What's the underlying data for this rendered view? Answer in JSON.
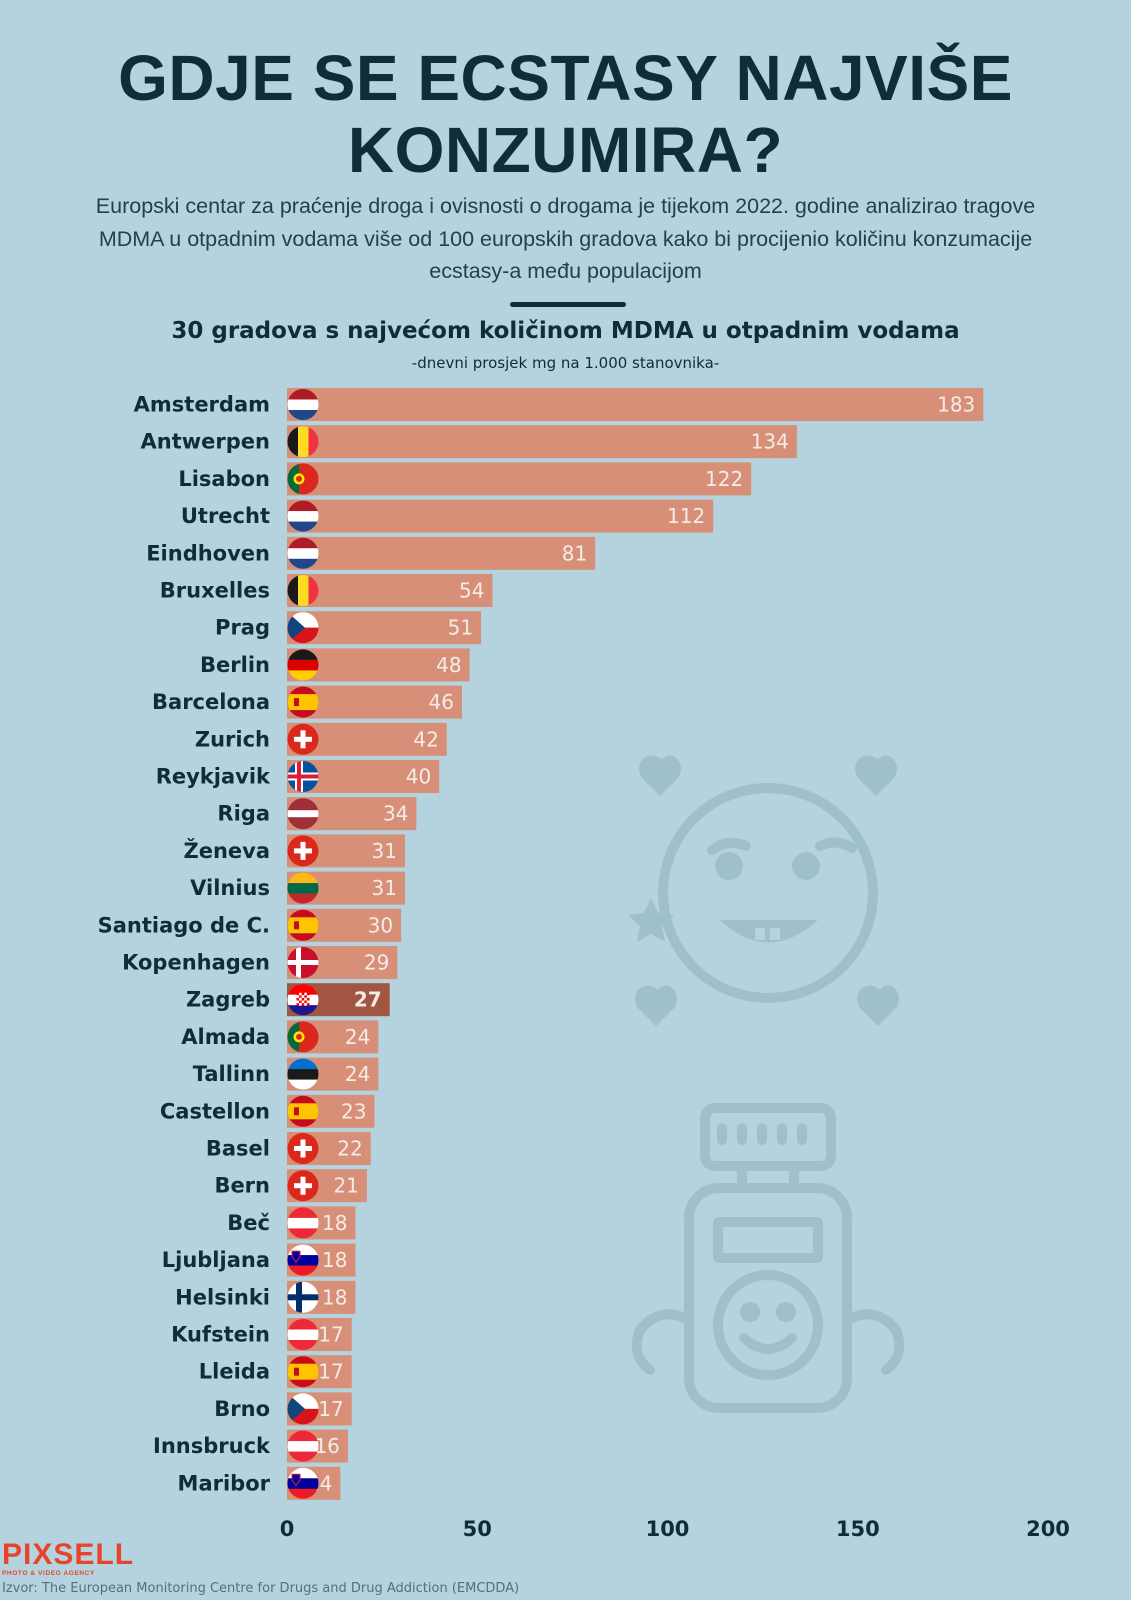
{
  "title": {
    "line1": "GDJE SE ECSTASY NAJVIŠE",
    "line2": "KONZUMIRA?"
  },
  "subtitle": "Europski centar za praćenje droga i ovisnosti o drogama je tijekom 2022. godine analizirao tragove MDMA u otpadnim vodama više od 100 europskih gradova kako bi procijenio količinu konzumacije ecstasy-a među populacijom",
  "colors": {
    "bar": "#d78f78",
    "highlight_bar": "#a25540",
    "value_label": "#f4ece8",
    "category_label": "#0f2d38",
    "axis_label": "#0f2d38",
    "background": "#b4d3de",
    "decoration": "#9fbfcb"
  },
  "chart_data": {
    "type": "bar",
    "orientation": "horizontal",
    "title": "30 gradova s najvećom količinom MDMA u otpadnim vodama",
    "subtitle": "-dnevni prosjek mg na 1.000 stanovnika-",
    "xlim": [
      0,
      200
    ],
    "xticks": [
      0,
      50,
      100,
      150,
      200
    ],
    "highlight": "Zagreb",
    "categories": [
      "Amsterdam",
      "Antwerpen",
      "Lisabon",
      "Utrecht",
      "Eindhoven",
      "Bruxelles",
      "Prag",
      "Berlin",
      "Barcelona",
      "Zurich",
      "Reykjavik",
      "Riga",
      "Ženeva",
      "Vilnius",
      "Santiago de C.",
      "Kopenhagen",
      "Zagreb",
      "Almada",
      "Tallinn",
      "Castellon",
      "Basel",
      "Bern",
      "Beč",
      "Ljubljana",
      "Helsinki",
      "Kufstein",
      "Lleida",
      "Brno",
      "Innsbruck",
      "Maribor"
    ],
    "values": [
      183,
      134,
      122,
      112,
      81,
      54,
      51,
      48,
      46,
      42,
      40,
      34,
      31,
      31,
      30,
      29,
      27,
      24,
      24,
      23,
      22,
      21,
      18,
      18,
      18,
      17,
      17,
      17,
      16,
      14
    ],
    "flags": [
      "netherlands",
      "belgium",
      "portugal",
      "netherlands",
      "netherlands",
      "belgium",
      "czechia",
      "germany",
      "spain",
      "switzerland",
      "iceland",
      "latvia",
      "switzerland",
      "lithuania",
      "spain",
      "denmark",
      "croatia",
      "portugal",
      "estonia",
      "spain",
      "switzerland",
      "switzerland",
      "austria",
      "slovenia",
      "finland",
      "austria",
      "spain",
      "czechia",
      "austria",
      "slovenia"
    ]
  },
  "decorations": [
    "smiling-face-icon",
    "speaker-robot-icon"
  ],
  "logo": {
    "name": "PIXSELL",
    "tagline": "PHOTO & VIDEO AGENCY"
  },
  "source": "Izvor: The European Monitoring Centre for Drugs and Drug Addiction (EMCDDA)"
}
